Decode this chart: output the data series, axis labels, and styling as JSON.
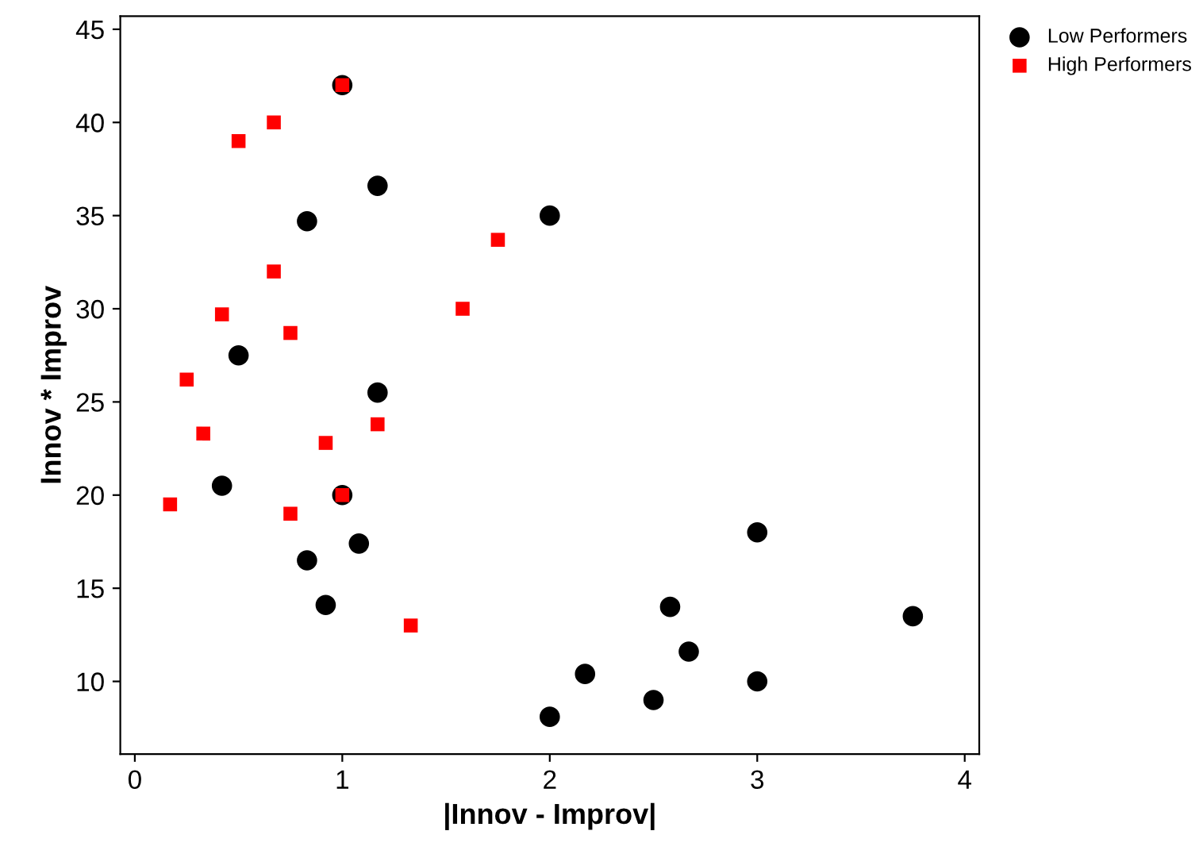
{
  "chart_data": {
    "type": "scatter",
    "xlabel": "|Innov - Improv|",
    "ylabel": "Innov * Improv",
    "xlim": [
      -0.07,
      4.07
    ],
    "ylim": [
      6.1,
      45.7
    ],
    "xticks": [
      0,
      1,
      2,
      3,
      4
    ],
    "yticks": [
      10,
      15,
      20,
      25,
      30,
      35,
      40,
      45
    ],
    "grid": false,
    "legend": "top right",
    "series": [
      {
        "name": "Low Performers",
        "color": "#000000",
        "marker": "circle",
        "x": [
          1,
          1.17,
          0.83,
          2,
          0.5,
          1.17,
          0.42,
          1,
          1.08,
          0.83,
          0.92,
          2,
          2.17,
          2.5,
          2.58,
          2.67,
          3,
          3,
          3.75
        ],
        "values": [
          42,
          36.6,
          34.7,
          35,
          27.5,
          25.5,
          20.5,
          20,
          17.4,
          16.5,
          14.1,
          8.1,
          10.4,
          9,
          14,
          11.6,
          18,
          10,
          13.5
        ]
      },
      {
        "name": "High Performers",
        "color": "#ff0000",
        "marker": "square",
        "x": [
          1,
          0.67,
          0.5,
          1.75,
          0.67,
          1.58,
          0.42,
          0.75,
          0.25,
          0.33,
          1.17,
          0.92,
          1,
          0.17,
          0.75,
          1.33
        ],
        "values": [
          42,
          40,
          39,
          33.7,
          32,
          30,
          29.7,
          28.7,
          26.2,
          23.3,
          23.8,
          22.8,
          20,
          19.5,
          19,
          13
        ]
      }
    ]
  }
}
